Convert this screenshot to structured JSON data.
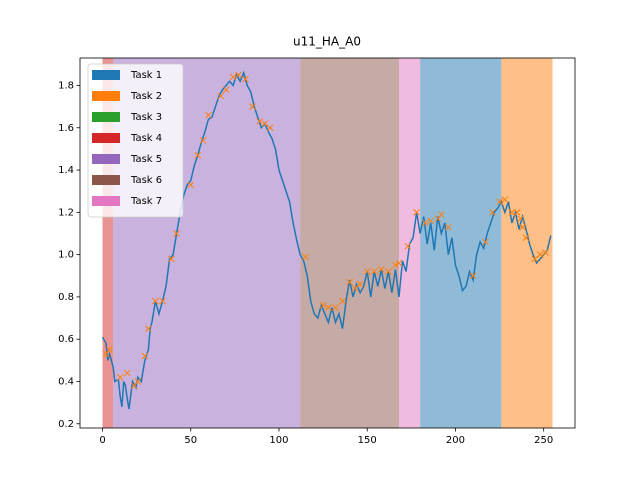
{
  "chart_data": {
    "type": "line",
    "title": "u11_HA_A0",
    "xlim": [
      -12.75,
      267.75
    ],
    "xticks": [
      0,
      50,
      100,
      150,
      200,
      250
    ],
    "ylim": [
      0.18,
      1.93
    ],
    "yticks": [
      0.2,
      0.4,
      0.6,
      0.8,
      {
        "value": 1,
        "label": "1.0"
      },
      1.2,
      1.4,
      1.6,
      1.8
    ],
    "grid": false,
    "legend": "upper left",
    "tasks": [
      {
        "name": "Task 1",
        "color": "#1f77b4",
        "spans": [
          [
            180,
            226
          ]
        ]
      },
      {
        "name": "Task 2",
        "color": "#ff7f0e",
        "spans": [
          [
            226,
            255
          ]
        ]
      },
      {
        "name": "Task 3",
        "color": "#2ca02c",
        "spans": []
      },
      {
        "name": "Task 4",
        "color": "#d62728",
        "spans": [
          [
            0,
            6
          ]
        ]
      },
      {
        "name": "Task 5",
        "color": "#9467bd",
        "spans": [
          [
            6,
            112
          ]
        ]
      },
      {
        "name": "Task 6",
        "color": "#8c564b",
        "spans": [
          [
            112,
            168
          ]
        ]
      },
      {
        "name": "Task 7",
        "color": "#e377c2",
        "spans": [
          [
            168,
            180
          ]
        ]
      }
    ],
    "series": [
      {
        "color": "#1f77b4",
        "marker": "line",
        "x": [
          0,
          2,
          3,
          4,
          6,
          7,
          9,
          10,
          11,
          12,
          13,
          14,
          15,
          17,
          19,
          20,
          22,
          24,
          26,
          27,
          28,
          30,
          32,
          34,
          36,
          38,
          40,
          42,
          44,
          46,
          48,
          50,
          52,
          54,
          56,
          58,
          60,
          62,
          64,
          66,
          68,
          70,
          72,
          74,
          76,
          78,
          80,
          82,
          84,
          86,
          88,
          90,
          92,
          94,
          96,
          98,
          100,
          102,
          104,
          106,
          108,
          110,
          112,
          114,
          116,
          118,
          120,
          122,
          124,
          126,
          128,
          130,
          132,
          134,
          136,
          138,
          140,
          142,
          144,
          146,
          148,
          150,
          152,
          154,
          156,
          158,
          160,
          162,
          164,
          166,
          168,
          170,
          172,
          174,
          176,
          178,
          180,
          182,
          184,
          186,
          188,
          190,
          192,
          194,
          196,
          198,
          200,
          202,
          204,
          206,
          208,
          210,
          212,
          214,
          216,
          218,
          220,
          222,
          224,
          226,
          228,
          230,
          232,
          234,
          236,
          238,
          240,
          242,
          244,
          246,
          248,
          250,
          252,
          254
        ],
        "values": [
          0.61,
          0.58,
          0.5,
          0.53,
          0.47,
          0.4,
          0.41,
          0.33,
          0.28,
          0.4,
          0.38,
          0.32,
          0.27,
          0.4,
          0.37,
          0.42,
          0.4,
          0.5,
          0.55,
          0.65,
          0.68,
          0.78,
          0.72,
          0.78,
          0.85,
          0.98,
          1.0,
          1.1,
          1.2,
          1.28,
          1.33,
          1.35,
          1.42,
          1.47,
          1.53,
          1.58,
          1.64,
          1.65,
          1.7,
          1.75,
          1.78,
          1.8,
          1.82,
          1.8,
          1.85,
          1.82,
          1.86,
          1.8,
          1.77,
          1.7,
          1.65,
          1.6,
          1.62,
          1.58,
          1.55,
          1.5,
          1.4,
          1.35,
          1.3,
          1.25,
          1.15,
          1.07,
          1.0,
          0.97,
          0.9,
          0.78,
          0.72,
          0.7,
          0.76,
          0.72,
          0.68,
          0.75,
          0.68,
          0.72,
          0.65,
          0.78,
          0.88,
          0.8,
          0.86,
          0.82,
          0.85,
          0.92,
          0.8,
          0.92,
          0.85,
          0.93,
          0.84,
          0.92,
          0.82,
          0.93,
          0.8,
          0.97,
          0.92,
          1.05,
          1.08,
          1.2,
          1.1,
          1.18,
          1.05,
          1.15,
          1.02,
          1.18,
          1.1,
          1.15,
          1.0,
          1.08,
          0.95,
          0.9,
          0.83,
          0.85,
          0.92,
          0.88,
          1.0,
          1.06,
          1.03,
          1.1,
          1.15,
          1.2,
          1.22,
          1.25,
          1.2,
          1.25,
          1.15,
          1.2,
          1.12,
          1.18,
          1.12,
          1.05,
          1.0,
          0.96,
          0.98,
          1.0,
          1.02,
          1.09
        ]
      },
      {
        "color": "#ff7f0e",
        "marker": "x",
        "x": [
          2,
          4,
          10,
          14,
          18,
          20,
          24,
          26,
          30,
          34,
          39,
          42,
          50,
          54,
          57,
          60,
          67,
          70,
          74,
          77,
          81,
          85,
          89,
          92,
          95,
          115,
          125,
          128,
          132,
          136,
          140,
          143,
          146,
          150,
          154,
          158,
          162,
          166,
          168,
          173,
          178,
          183,
          186,
          190,
          192,
          196,
          210,
          217,
          221,
          225,
          228,
          232,
          235,
          237,
          238,
          240,
          245,
          248,
          251
        ],
        "values": [
          0.53,
          0.55,
          0.42,
          0.44,
          0.38,
          0.4,
          0.52,
          0.65,
          0.78,
          0.78,
          0.98,
          1.1,
          1.33,
          1.47,
          1.54,
          1.66,
          1.75,
          1.78,
          1.84,
          1.85,
          1.83,
          1.7,
          1.63,
          1.62,
          1.6,
          0.99,
          0.76,
          0.75,
          0.75,
          0.78,
          0.87,
          0.84,
          0.86,
          0.92,
          0.92,
          0.93,
          0.92,
          0.95,
          0.96,
          1.04,
          1.2,
          1.15,
          1.16,
          1.17,
          1.19,
          1.13,
          0.9,
          1.06,
          1.2,
          1.25,
          1.26,
          1.2,
          1.2,
          1.17,
          1.13,
          1.08,
          0.98,
          1.0,
          1.01
        ]
      }
    ]
  }
}
